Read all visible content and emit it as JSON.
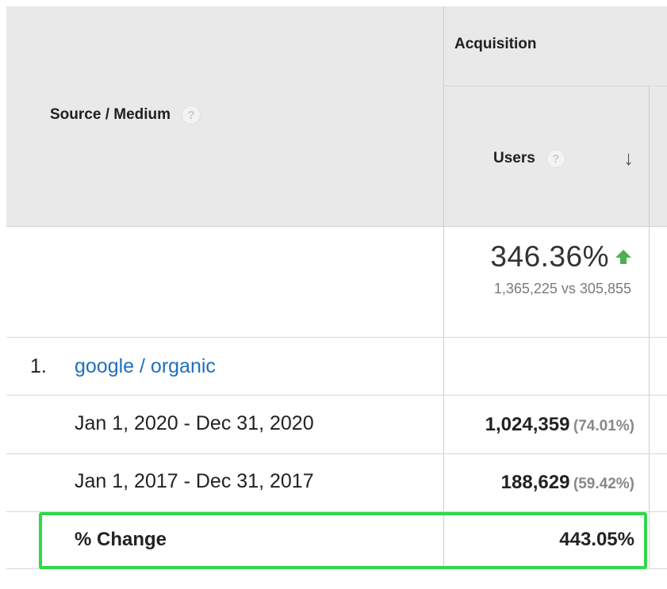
{
  "header": {
    "source_medium_label": "Source / Medium",
    "acquisition_label": "Acquisition",
    "users_label": "Users",
    "help_glyph": "?",
    "sort_glyph": "↓"
  },
  "summary": {
    "users_change_pct": "346.36%",
    "users_comparison": "1,365,225 vs 305,855",
    "trend_icon": "green-up-arrow-icon",
    "trend_color": "#4caf50"
  },
  "rows": {
    "item_index": "1.",
    "item_label": "google / organic",
    "period_1": {
      "label": "Jan 1, 2020 - Dec 31, 2020",
      "users": "1,024,359",
      "users_share": "(74.01%)"
    },
    "period_2": {
      "label": "Jan 1, 2017 - Dec 31, 2017",
      "users": "188,629",
      "users_share": "(59.42%)"
    },
    "change": {
      "label": "% Change",
      "users": "443.05%"
    }
  },
  "colors": {
    "header_bg": "#e9e9e9",
    "link": "#1f6fbf",
    "highlight_border": "#2fd94a"
  }
}
